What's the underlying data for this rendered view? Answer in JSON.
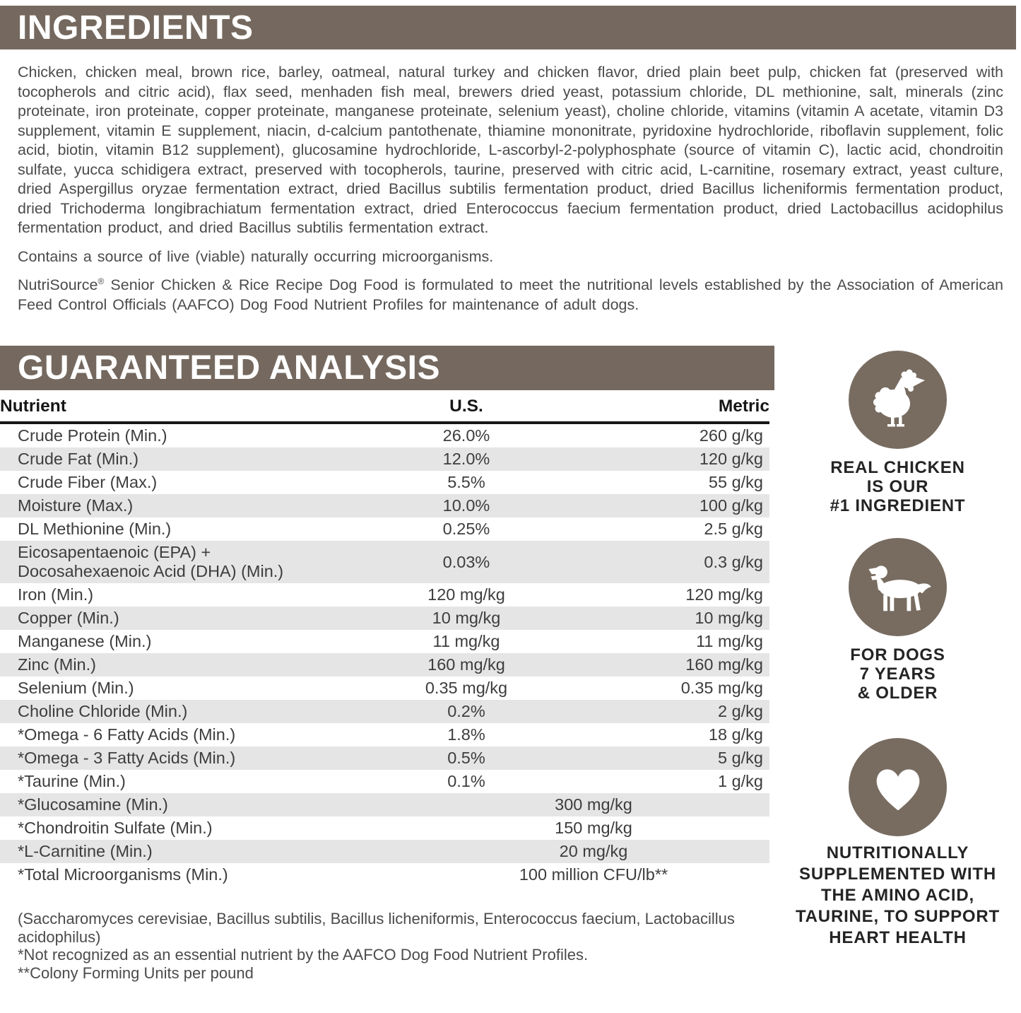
{
  "colors": {
    "header_bar": "#75695f",
    "badge_circle": "#786c61",
    "row_stripe": "#e5e5e5",
    "body_text": "#4b4b4b",
    "table_text": "#3d3d3d"
  },
  "ingredients": {
    "title": "INGREDIENTS",
    "body": "Chicken, chicken meal, brown rice, barley, oatmeal, natural turkey and chicken flavor, dried plain beet pulp, chicken fat (preserved with tocopherols and citric acid), flax seed, menhaden fish meal, brewers dried yeast, potassium chloride, DL methionine, salt, minerals (zinc proteinate, iron proteinate, copper proteinate, manganese proteinate, selenium yeast), choline chloride, vitamins (vitamin A acetate, vitamin D3 supplement, vitamin E supplement, niacin, d-calcium pantothenate, thiamine mononitrate, pyridoxine hydrochloride, riboflavin supplement, folic acid, biotin, vitamin B12 supplement), glucosamine hydrochloride, L-ascorbyl-2-polyphosphate (source of vitamin C), lactic acid, chondroitin sulfate, yucca schidigera extract, preserved with tocopherols, taurine, preserved with citric acid, L-carnitine, rosemary extract, yeast culture, dried Aspergillus oryzae fermentation extract, dried Bacillus subtilis fermentation product, dried Bacillus licheniformis fermentation product, dried Trichoderma longibrachiatum fermentation extract, dried Enterococcus faecium fermentation product, dried Lactobacillus acidophilus fermentation product, and dried Bacillus subtilis fermentation extract.",
    "microorganisms_note": "Contains a source of live (viable) naturally occurring microorganisms.",
    "aafco_brand": "NutriSource",
    "aafco_reg": "®",
    "aafco_rest": " Senior Chicken & Rice Recipe Dog Food is formulated to meet the nutritional levels established by the Association of American Feed Control Officials (AAFCO) Dog Food Nutrient Profiles for maintenance of adult dogs."
  },
  "analysis": {
    "title": "GUARANTEED ANALYSIS",
    "columns": [
      "Nutrient",
      "U.S.",
      "Metric"
    ],
    "rows": [
      {
        "nutrient": "Crude Protein (Min.)",
        "us": "26.0%",
        "metric": "260 g/kg"
      },
      {
        "nutrient": "Crude Fat (Min.)",
        "us": "12.0%",
        "metric": "120 g/kg"
      },
      {
        "nutrient": "Crude Fiber (Max.)",
        "us": "5.5%",
        "metric": "55 g/kg"
      },
      {
        "nutrient": "Moisture (Max.)",
        "us": "10.0%",
        "metric": "100 g/kg"
      },
      {
        "nutrient": "DL Methionine (Min.)",
        "us": "0.25%",
        "metric": "2.5 g/kg"
      },
      {
        "nutrient": "Eicosapentaenoic (EPA) +\nDocosahexaenoic Acid (DHA) (Min.)",
        "us": "0.03%",
        "metric": "0.3 g/kg"
      },
      {
        "nutrient": "Iron (Min.)",
        "us": "120 mg/kg",
        "metric": "120 mg/kg"
      },
      {
        "nutrient": "Copper (Min.)",
        "us": "10 mg/kg",
        "metric": "10 mg/kg"
      },
      {
        "nutrient": "Manganese (Min.)",
        "us": "11 mg/kg",
        "metric": "11 mg/kg"
      },
      {
        "nutrient": "Zinc (Min.)",
        "us": "160 mg/kg",
        "metric": "160 mg/kg"
      },
      {
        "nutrient": "Selenium (Min.)",
        "us": "0.35 mg/kg",
        "metric": "0.35 mg/kg"
      },
      {
        "nutrient": "Choline Chloride (Min.)",
        "us": "0.2%",
        "metric": "2 g/kg"
      },
      {
        "nutrient": "*Omega - 6 Fatty Acids (Min.)",
        "us": "1.8%",
        "metric": "18 g/kg"
      },
      {
        "nutrient": "*Omega - 3 Fatty Acids (Min.)",
        "us": "0.5%",
        "metric": "5 g/kg"
      },
      {
        "nutrient": "*Taurine (Min.)",
        "us": "0.1%",
        "metric": "1 g/kg"
      },
      {
        "nutrient": "*Glucosamine (Min.)",
        "span_value": "300 mg/kg"
      },
      {
        "nutrient": "*Chondroitin Sulfate (Min.)",
        "span_value": "150 mg/kg"
      },
      {
        "nutrient": "*L-Carnitine (Min.)",
        "span_value": "20 mg/kg"
      },
      {
        "nutrient": "*Total Microorganisms (Min.)",
        "span_value": "100 million CFU/lb**"
      }
    ],
    "footnotes": [
      "(Saccharomyces cerevisiae, Bacillus subtilis, Bacillus licheniformis, Enterococcus faecium, Lactobacillus acidophilus)",
      "*Not recognized as an essential nutrient by the AAFCO Dog Food Nutrient Profiles.",
      "**Colony Forming Units per pound"
    ]
  },
  "badges": [
    {
      "icon": "chicken-icon",
      "caption": "REAL CHICKEN\nIS OUR\n#1 INGREDIENT"
    },
    {
      "icon": "dog-icon",
      "caption": "FOR DOGS\n7 YEARS\n& OLDER"
    },
    {
      "icon": "heart-icon",
      "caption": "NUTRITIONALLY\nSUPPLEMENTED WITH\nTHE AMINO ACID,\nTAURINE, TO SUPPORT\nHEART HEALTH"
    }
  ]
}
